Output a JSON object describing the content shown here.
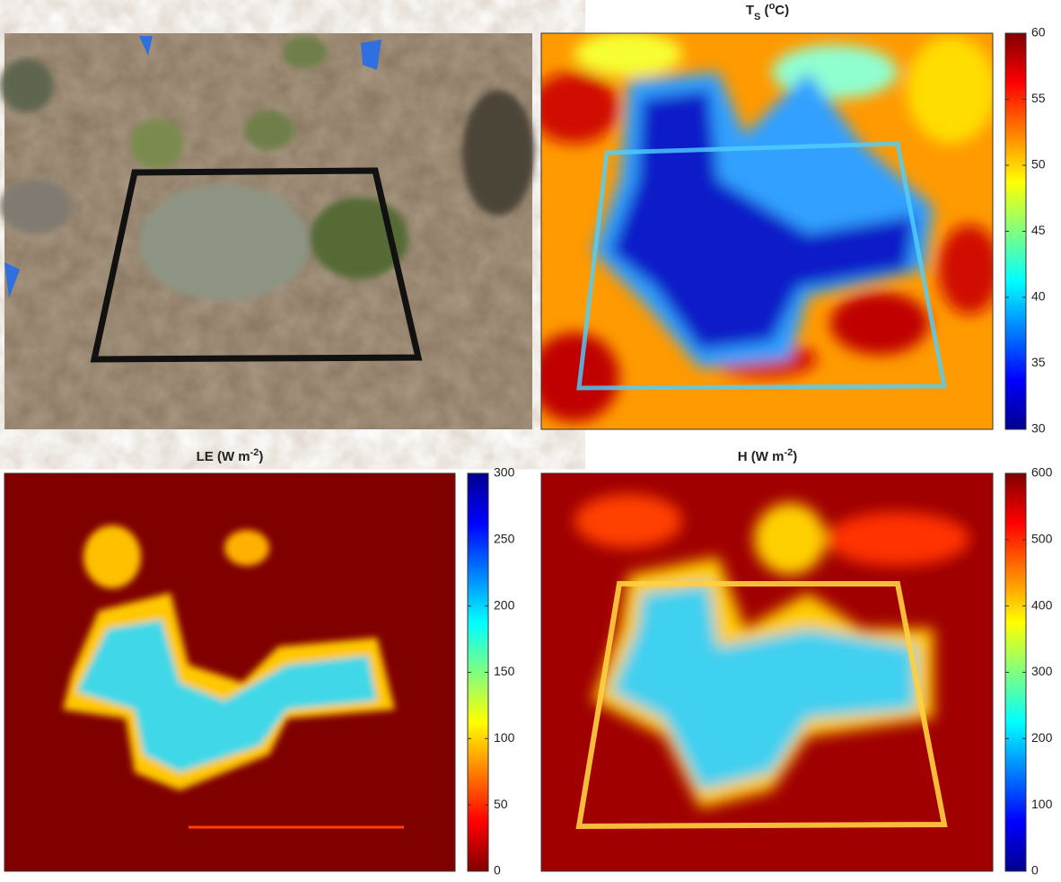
{
  "chart_data": [
    {
      "type": "heatmap",
      "title_parts": [
        {
          "text": "T",
          "style": "normal"
        },
        {
          "text": "S",
          "style": "sub"
        },
        {
          "text": " (",
          "style": "normal"
        },
        {
          "text": "o",
          "style": "sup"
        },
        {
          "text": "C)",
          "style": "normal"
        }
      ],
      "colormap": "jet",
      "reversed": false,
      "clim": [
        30,
        60
      ],
      "cticks": [
        30,
        35,
        40,
        45,
        50,
        55,
        60
      ]
    },
    {
      "type": "heatmap",
      "title_parts": [
        {
          "text": "LE (W m",
          "style": "normal"
        },
        {
          "text": "-2",
          "style": "sup"
        },
        {
          "text": ")",
          "style": "normal"
        }
      ],
      "colormap": "jet",
      "reversed": true,
      "clim": [
        0,
        300
      ],
      "cticks": [
        0,
        50,
        100,
        150,
        200,
        250,
        300
      ]
    },
    {
      "type": "heatmap",
      "title_parts": [
        {
          "text": "H (W m",
          "style": "normal"
        },
        {
          "text": "-2",
          "style": "sup"
        },
        {
          "text": ")",
          "style": "normal"
        }
      ],
      "colormap": "jet",
      "reversed": false,
      "clim": [
        0,
        600
      ],
      "cticks": [
        0,
        100,
        200,
        300,
        400,
        500,
        600
      ]
    }
  ]
}
